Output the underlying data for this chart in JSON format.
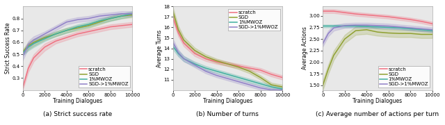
{
  "fig_width": 6.4,
  "fig_height": 1.8,
  "dpi": 100,
  "background_color": "#e8e8e8",
  "x_vals": [
    0,
    500,
    1000,
    2000,
    3000,
    4000,
    5000,
    6000,
    7000,
    8000,
    9000,
    10000
  ],
  "subplot_a": {
    "title": "(a) Strict success rate",
    "xlabel": "Training Dialogues",
    "ylabel": "Strict Success Rate",
    "ylim": [
      0.2,
      0.9
    ],
    "yticks": [
      0.3,
      0.4,
      0.5,
      0.6,
      0.7,
      0.8
    ],
    "xlim": [
      0,
      10000
    ],
    "xticks": [
      0,
      2000,
      4000,
      6000,
      8000,
      10000
    ],
    "legend_loc": "lower right",
    "scratch_mean": [
      0.22,
      0.38,
      0.47,
      0.56,
      0.61,
      0.64,
      0.67,
      0.69,
      0.71,
      0.73,
      0.74,
      0.75
    ],
    "scratch_std": [
      0.02,
      0.03,
      0.03,
      0.03,
      0.02,
      0.02,
      0.02,
      0.02,
      0.02,
      0.02,
      0.02,
      0.02
    ],
    "sgd_mean": [
      0.52,
      0.57,
      0.6,
      0.64,
      0.67,
      0.7,
      0.72,
      0.74,
      0.77,
      0.8,
      0.82,
      0.83
    ],
    "sgd_std": [
      0.02,
      0.03,
      0.03,
      0.02,
      0.02,
      0.02,
      0.02,
      0.02,
      0.02,
      0.02,
      0.02,
      0.02
    ],
    "mwoz_mean": [
      0.51,
      0.56,
      0.59,
      0.63,
      0.67,
      0.7,
      0.73,
      0.75,
      0.78,
      0.8,
      0.82,
      0.84
    ],
    "mwoz_std": [
      0.02,
      0.03,
      0.03,
      0.02,
      0.02,
      0.02,
      0.02,
      0.02,
      0.02,
      0.02,
      0.02,
      0.02
    ],
    "sgdmwoz_mean": [
      0.48,
      0.58,
      0.62,
      0.67,
      0.72,
      0.77,
      0.79,
      0.8,
      0.82,
      0.83,
      0.84,
      0.84
    ],
    "sgdmwoz_std": [
      0.03,
      0.03,
      0.03,
      0.02,
      0.02,
      0.02,
      0.02,
      0.02,
      0.02,
      0.02,
      0.02,
      0.02
    ]
  },
  "subplot_b": {
    "title": "(b) Number of turns",
    "xlabel": "Training Dialogues",
    "ylabel": "Average Turns",
    "ylim": [
      10,
      18
    ],
    "yticks": [
      11,
      12,
      13,
      14,
      15,
      16,
      17,
      18
    ],
    "xlim": [
      0,
      10000
    ],
    "xticks": [
      0,
      2000,
      4000,
      6000,
      8000,
      10000
    ],
    "legend_loc": "upper right",
    "scratch_mean": [
      17.0,
      15.5,
      14.5,
      13.5,
      13.0,
      12.7,
      12.5,
      12.3,
      12.1,
      11.9,
      11.5,
      11.2
    ],
    "scratch_std": [
      0.35,
      0.35,
      0.3,
      0.25,
      0.22,
      0.2,
      0.2,
      0.2,
      0.2,
      0.2,
      0.2,
      0.2
    ],
    "sgd_mean": [
      17.6,
      15.8,
      14.8,
      13.8,
      13.2,
      12.8,
      12.5,
      12.2,
      11.8,
      11.2,
      10.5,
      10.3
    ],
    "sgd_std": [
      0.35,
      0.35,
      0.3,
      0.25,
      0.22,
      0.2,
      0.2,
      0.2,
      0.2,
      0.2,
      0.2,
      0.2
    ],
    "mwoz_mean": [
      14.2,
      13.5,
      13.0,
      12.5,
      12.1,
      11.8,
      11.5,
      11.2,
      10.9,
      10.6,
      10.3,
      10.1
    ],
    "mwoz_std": [
      0.3,
      0.28,
      0.25,
      0.22,
      0.2,
      0.18,
      0.18,
      0.18,
      0.18,
      0.18,
      0.18,
      0.18
    ],
    "sgdmwoz_mean": [
      14.6,
      13.6,
      13.0,
      12.4,
      11.8,
      11.4,
      11.1,
      10.8,
      10.5,
      10.2,
      10.0,
      10.0
    ],
    "sgdmwoz_std": [
      0.3,
      0.28,
      0.25,
      0.22,
      0.2,
      0.18,
      0.18,
      0.18,
      0.18,
      0.18,
      0.18,
      0.18
    ]
  },
  "subplot_c": {
    "title": "(c) Average number of actions per turn",
    "xlabel": "Training Dialogues",
    "ylabel": "Average Actions",
    "ylim": [
      1.4,
      3.2
    ],
    "yticks": [
      1.5,
      1.75,
      2.0,
      2.25,
      2.5,
      2.75,
      3.0
    ],
    "xlim": [
      0,
      10000
    ],
    "xticks": [
      0,
      2000,
      4000,
      6000,
      8000,
      10000
    ],
    "legend_loc": "lower right",
    "scratch_mean": [
      3.1,
      3.1,
      3.1,
      3.07,
      3.04,
      3.02,
      3.0,
      2.98,
      2.95,
      2.92,
      2.88,
      2.83
    ],
    "scratch_std": [
      0.04,
      0.04,
      0.04,
      0.04,
      0.04,
      0.04,
      0.04,
      0.04,
      0.04,
      0.04,
      0.04,
      0.04
    ],
    "sgd_mean": [
      1.5,
      1.85,
      2.15,
      2.5,
      2.68,
      2.7,
      2.65,
      2.63,
      2.62,
      2.62,
      2.6,
      2.6
    ],
    "sgd_std": [
      0.1,
      0.1,
      0.1,
      0.09,
      0.09,
      0.09,
      0.08,
      0.08,
      0.08,
      0.08,
      0.08,
      0.08
    ],
    "mwoz_mean": [
      2.78,
      2.78,
      2.78,
      2.78,
      2.78,
      2.77,
      2.76,
      2.75,
      2.74,
      2.72,
      2.7,
      2.68
    ],
    "mwoz_std": [
      0.03,
      0.03,
      0.03,
      0.03,
      0.03,
      0.03,
      0.03,
      0.03,
      0.03,
      0.03,
      0.03,
      0.03
    ],
    "sgdmwoz_mean": [
      2.4,
      2.62,
      2.74,
      2.79,
      2.8,
      2.8,
      2.79,
      2.78,
      2.76,
      2.74,
      2.72,
      2.7
    ],
    "sgdmwoz_std": [
      0.06,
      0.06,
      0.06,
      0.05,
      0.05,
      0.05,
      0.05,
      0.05,
      0.05,
      0.05,
      0.05,
      0.05
    ]
  },
  "colors": {
    "scratch": "#f07080",
    "sgd": "#8fa030",
    "mwoz": "#40b0a0",
    "sgdmwoz": "#9080c8"
  },
  "alpha_fill": 0.22,
  "linewidth": 1.1,
  "legend_fontsize": 5.0,
  "tick_fontsize": 5.0,
  "label_fontsize": 5.5,
  "title_fontsize": 6.5
}
